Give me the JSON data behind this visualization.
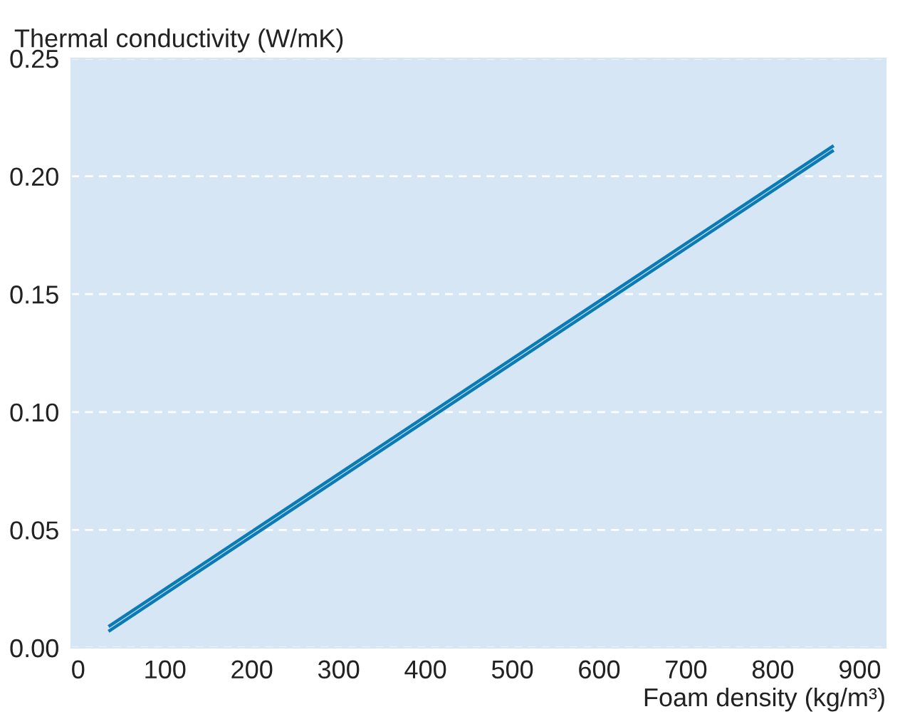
{
  "chart_data": {
    "type": "line",
    "xlabel": "Foam density (kg/m³)",
    "ylabel": "Thermal conductivity (W/mK)",
    "series": [
      {
        "color": "#0a7bb5",
        "values": [
          0.009,
          0.213
        ]
      },
      {
        "color": "#0a7bb5",
        "values": [
          0.007,
          0.211
        ]
      }
    ],
    "x": [
      35,
      870
    ],
    "xlim": [
      -8,
      930
    ],
    "xticks": [
      0,
      100,
      200,
      300,
      400,
      500,
      600,
      700,
      800,
      900
    ],
    "ylim": [
      0,
      0.25
    ],
    "yticks": [
      {
        "value": 0,
        "label": "0.00"
      },
      {
        "value": 0.05,
        "label": "0.05"
      },
      {
        "value": 0.1,
        "label": "0.10"
      },
      {
        "value": 0.15,
        "label": "0.15"
      },
      {
        "value": 0.2,
        "label": "0.20"
      },
      {
        "value": 0.25,
        "label": "0.25"
      }
    ],
    "grid": "y",
    "line_style": "solid",
    "marker": "none"
  }
}
